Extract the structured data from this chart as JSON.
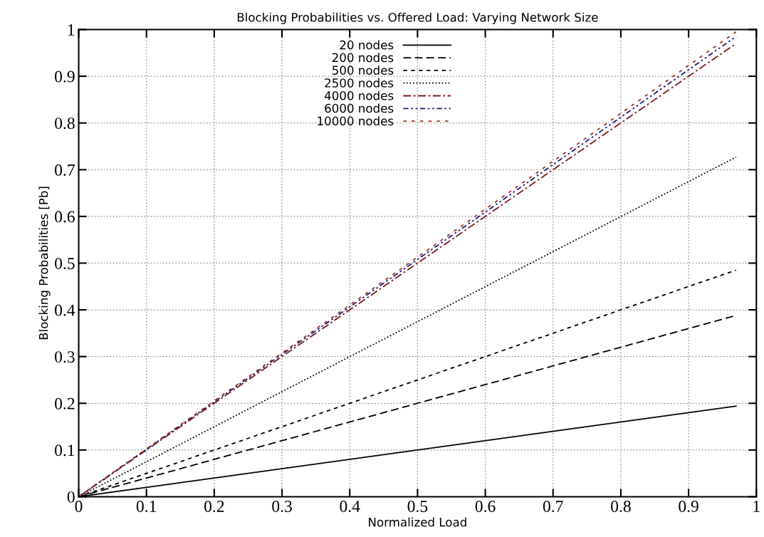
{
  "chart_data": {
    "type": "line",
    "title": "Blocking Probabilities vs. Offered Load: Varying Network Size",
    "xlabel": "Normalized Load",
    "ylabel": "Blocking Probabilities [Pb]",
    "xlim": [
      0,
      1
    ],
    "ylim": [
      0,
      1
    ],
    "xticks": [
      0,
      0.1,
      0.2,
      0.3,
      0.4,
      0.5,
      0.6,
      0.7,
      0.8,
      0.9,
      1
    ],
    "yticks": [
      0,
      0.1,
      0.2,
      0.3,
      0.4,
      0.5,
      0.6,
      0.7,
      0.8,
      0.9,
      1
    ],
    "grid": true,
    "legend": "top",
    "marker": "none",
    "x": [
      0,
      0.97
    ],
    "series": [
      {
        "name": "20 nodes",
        "color": "#000000",
        "line_style": "solid",
        "values": [
          0,
          0.194
        ]
      },
      {
        "name": "200 nodes",
        "color": "#000000",
        "line_style": "dashed",
        "values": [
          0,
          0.388
        ]
      },
      {
        "name": "500 nodes",
        "color": "#000000",
        "line_style": "short-dashed",
        "values": [
          0,
          0.485
        ]
      },
      {
        "name": "2500 nodes",
        "color": "#000000",
        "line_style": "dotted",
        "values": [
          0,
          0.727
        ]
      },
      {
        "name": "4000 nodes",
        "color": "#7a1a1a",
        "line_style": "dashdot",
        "values": [
          0,
          0.97
        ]
      },
      {
        "name": "6000 nodes",
        "color": "#1a1a80",
        "line_style": "dashdotdot",
        "values": [
          0,
          0.985
        ]
      },
      {
        "name": "10000 nodes",
        "color": "#a03020",
        "line_style": "sparse-dashed",
        "values": [
          0,
          0.995
        ]
      }
    ]
  }
}
